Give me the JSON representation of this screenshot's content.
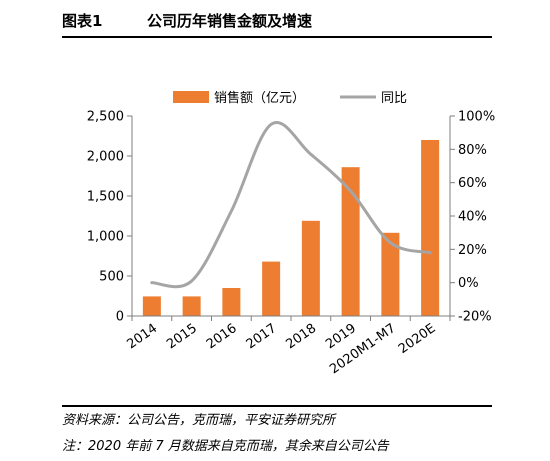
{
  "header": {
    "figure_number": "图表1",
    "title": "公司历年销售金额及增速"
  },
  "footer": {
    "source": "资料来源：公司公告，克而瑞，平安证券研究所",
    "note": "注：2020 年前 7 月数据来自克而瑞，其余来自公司公告"
  },
  "colors": {
    "bar": "#ED7D31",
    "line": "#A5A5A5",
    "axis": "#7F7F7F"
  },
  "chart_data": {
    "type": "bar",
    "categories": [
      "2014",
      "2015",
      "2016",
      "2017",
      "2018",
      "2019",
      "2020M1-M7",
      "2020E"
    ],
    "series": [
      {
        "name": "销售额（亿元）",
        "type": "bar",
        "axis": "left",
        "values": [
          245,
          245,
          350,
          680,
          1190,
          1860,
          1040,
          2200
        ]
      },
      {
        "name": "同比",
        "type": "line",
        "axis": "right",
        "unit": "%",
        "values": [
          0,
          1,
          43,
          95,
          77,
          55,
          24,
          18
        ]
      }
    ],
    "y_left": {
      "min": 0,
      "max": 2500,
      "ticks": [
        0,
        500,
        1000,
        1500,
        2000,
        2500
      ],
      "tick_labels": [
        "0",
        "500",
        "1,000",
        "1,500",
        "2,000",
        "2,500"
      ]
    },
    "y_right": {
      "min": -20,
      "max": 100,
      "ticks": [
        -20,
        0,
        20,
        40,
        60,
        80,
        100
      ],
      "tick_labels": [
        "-20%",
        "0%",
        "20%",
        "40%",
        "60%",
        "80%",
        "100%"
      ]
    },
    "legend_position": "top",
    "grid": false
  }
}
